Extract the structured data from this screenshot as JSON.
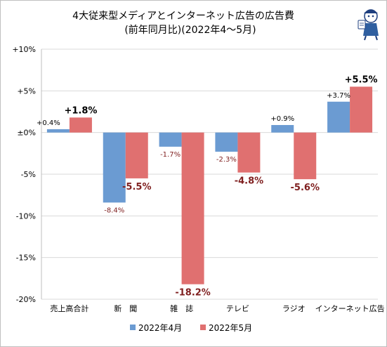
{
  "chart_data": {
    "type": "bar",
    "title": [
      "4大従来型メディアとインターネット広告の広告費",
      "(前年同月比)(2022年4～5月)"
    ],
    "categories": [
      "売上高合計",
      "新　聞",
      "雑　誌",
      "テレビ",
      "ラジオ",
      "インターネット広告"
    ],
    "series": [
      {
        "name": "2022年4月",
        "values": [
          0.4,
          -8.4,
          -1.7,
          -2.3,
          0.9,
          3.7
        ],
        "labels": [
          "+0.4%",
          "-8.4%",
          "-1.7%",
          "-2.3%",
          "+0.9%",
          "+3.7%"
        ],
        "color": "#6b9bd2"
      },
      {
        "name": "2022年5月",
        "values": [
          1.8,
          -5.5,
          -18.2,
          -4.8,
          -5.6,
          5.5
        ],
        "labels": [
          "+1.8%",
          "-5.5%",
          "-18.2%",
          "-4.8%",
          "-5.6%",
          "+5.5%"
        ],
        "color": "#e07070"
      }
    ],
    "yticks": [
      10,
      5,
      0,
      -5,
      -10,
      -15,
      -20
    ],
    "ytick_labels": [
      "+10%",
      "+5%",
      "±0%",
      "-5%",
      "-10%",
      "-15%",
      "-20%"
    ],
    "ylim": [
      -20,
      10
    ],
    "grid": true,
    "legend_position": "bottom"
  },
  "colors": {
    "series_a": "#6b9bd2",
    "series_b": "#e07070",
    "neg_label": "#7f1f1f",
    "grid": "#d9d9d9"
  }
}
